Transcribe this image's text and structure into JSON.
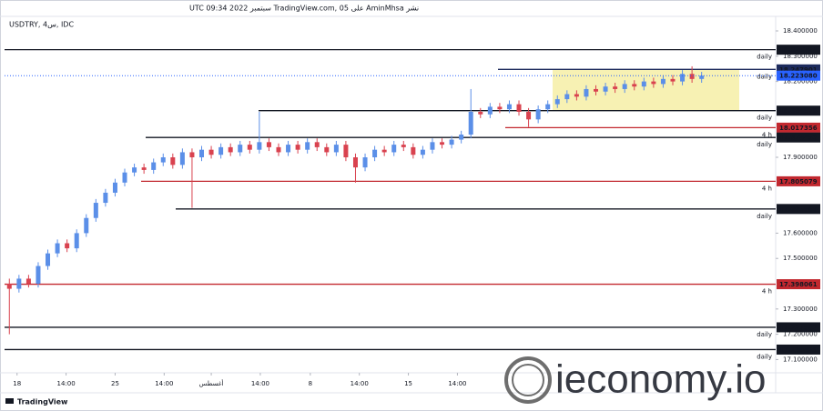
{
  "chart_data": {
    "type": "candlestick",
    "header": "نشر AminMhsa على TradingView.com, 05 سبتمبر 2022 09:34 UTC",
    "symbol": "USDTRY, 4س, IDC",
    "brand": "TradingView",
    "watermark": "ieconomy.io",
    "up_color": "#5b8fe8",
    "down_color": "#d9424f",
    "open": [
      17.4,
      17.38,
      17.42,
      17.4,
      17.47,
      17.52,
      17.56,
      17.54,
      17.6,
      17.66,
      17.72,
      17.76,
      17.8,
      17.84,
      17.86,
      17.85,
      17.88,
      17.9,
      17.87,
      17.92,
      17.9,
      17.93,
      17.91,
      17.94,
      17.92,
      17.95,
      17.93,
      17.96,
      17.94,
      17.92,
      17.95,
      17.93,
      17.96,
      17.94,
      17.92,
      17.95,
      17.9,
      17.86,
      17.9,
      17.93,
      17.92,
      17.95,
      17.94,
      17.91,
      17.93,
      17.96,
      17.95,
      17.97,
      17.99,
      18.08,
      18.07,
      18.1,
      18.09,
      18.11,
      18.08,
      18.05,
      18.09,
      18.11,
      18.13,
      18.15,
      18.14,
      18.17,
      18.16,
      18.18,
      18.17,
      18.19,
      18.18,
      18.2,
      18.19,
      18.21,
      18.2,
      18.23,
      18.21
    ],
    "high": [
      17.42,
      17.435,
      17.435,
      17.485,
      17.535,
      17.575,
      17.575,
      17.615,
      17.675,
      17.735,
      17.775,
      17.815,
      17.855,
      17.875,
      17.875,
      17.895,
      17.915,
      17.915,
      17.935,
      17.935,
      17.945,
      17.945,
      17.955,
      17.955,
      17.965,
      17.965,
      18.08,
      17.975,
      17.955,
      17.965,
      17.965,
      17.975,
      17.975,
      17.955,
      17.965,
      17.965,
      17.915,
      17.915,
      17.945,
      17.945,
      17.965,
      17.965,
      17.955,
      17.945,
      17.975,
      17.975,
      17.985,
      18.005,
      18.17,
      18.095,
      18.115,
      18.115,
      18.125,
      18.125,
      18.095,
      18.105,
      18.125,
      18.145,
      18.165,
      18.165,
      18.185,
      18.185,
      18.195,
      18.195,
      18.205,
      18.205,
      18.215,
      18.215,
      18.225,
      18.225,
      18.245,
      18.26,
      18.238
    ],
    "low": [
      17.2,
      17.365,
      17.385,
      17.385,
      17.455,
      17.505,
      17.525,
      17.525,
      17.585,
      17.645,
      17.705,
      17.745,
      17.785,
      17.825,
      17.835,
      17.835,
      17.865,
      17.855,
      17.855,
      17.7,
      17.885,
      17.895,
      17.895,
      17.905,
      17.905,
      17.915,
      17.915,
      17.925,
      17.905,
      17.905,
      17.915,
      17.915,
      17.925,
      17.905,
      17.905,
      17.885,
      17.8,
      17.845,
      17.885,
      17.905,
      17.905,
      17.925,
      17.895,
      17.895,
      17.915,
      17.935,
      17.935,
      17.955,
      17.975,
      18.055,
      18.055,
      18.075,
      18.075,
      18.065,
      18.02,
      18.035,
      18.075,
      18.095,
      18.115,
      18.125,
      18.125,
      18.145,
      18.145,
      18.155,
      18.155,
      18.165,
      18.165,
      18.175,
      18.175,
      18.185,
      18.185,
      18.195,
      18.195
    ],
    "close": [
      17.38,
      17.42,
      17.4,
      17.47,
      17.52,
      17.56,
      17.54,
      17.6,
      17.66,
      17.72,
      17.76,
      17.8,
      17.84,
      17.86,
      17.85,
      17.88,
      17.9,
      17.87,
      17.92,
      17.9,
      17.93,
      17.91,
      17.94,
      17.92,
      17.95,
      17.93,
      17.96,
      17.94,
      17.92,
      17.95,
      17.93,
      17.96,
      17.94,
      17.92,
      17.95,
      17.9,
      17.86,
      17.9,
      17.93,
      17.92,
      17.95,
      17.94,
      17.91,
      17.93,
      17.96,
      17.95,
      17.97,
      17.99,
      18.08,
      18.07,
      18.1,
      18.09,
      18.11,
      18.08,
      18.05,
      18.09,
      18.11,
      18.13,
      18.15,
      18.14,
      18.17,
      18.16,
      18.18,
      18.17,
      18.19,
      18.18,
      18.2,
      18.19,
      18.21,
      18.2,
      18.23,
      18.21,
      18.22308
    ],
    "last_price": {
      "value": 18.22308,
      "label": "18.223080",
      "color": "#2962ff"
    },
    "levels": [
      {
        "value": 18.325724,
        "color": "#131722",
        "tag": "daily"
      },
      {
        "value": 18.247901,
        "color": "#1c2a5c",
        "tag": "daily"
      },
      {
        "value": 18.084578,
        "color": "#131722",
        "tag": "daily"
      },
      {
        "value": 18.017356,
        "color": "#c2282f",
        "tag": "4 h"
      },
      {
        "value": 17.978453,
        "color": "#131722",
        "tag": "daily"
      },
      {
        "value": 17.805079,
        "color": "#c2282f",
        "tag": "4 h"
      },
      {
        "value": 17.695586,
        "color": "#131722",
        "tag": "daily"
      },
      {
        "value": 17.398061,
        "color": "#c2282f",
        "tag": "4 h"
      },
      {
        "value": 17.227502,
        "color": "#131722",
        "tag": "daily"
      },
      {
        "value": 17.139429,
        "color": "#131722",
        "tag": "daily"
      }
    ],
    "xlim": [
      -0.5,
      79.7
    ],
    "xticks": [
      {
        "value": 0.8,
        "label": "18"
      },
      {
        "value": 5.9,
        "label": "14:00"
      },
      {
        "value": 11,
        "label": "25"
      },
      {
        "value": 16.1,
        "label": "14:00"
      },
      {
        "value": 21,
        "label": "أغسطس"
      },
      {
        "value": 26.1,
        "label": "14:00"
      },
      {
        "value": 31.3,
        "label": "8"
      },
      {
        "value": 36.4,
        "label": "14:00"
      },
      {
        "value": 41.5,
        "label": "15"
      },
      {
        "value": 46.6,
        "label": "14:00"
      }
    ],
    "ylim": [
      17.0475,
      18.4576
    ],
    "yticks": [
      {
        "value": 17.1,
        "label": "17.100000"
      },
      {
        "value": 17.2,
        "label": "17.200000"
      },
      {
        "value": 17.3,
        "label": "17.300000"
      },
      {
        "value": 17.5,
        "label": "17.500000"
      },
      {
        "value": 17.6,
        "label": "17.600000"
      },
      {
        "value": 17.9,
        "label": "17.900000"
      },
      {
        "value": 18.2,
        "label": "18.200000"
      },
      {
        "value": 18.3,
        "label": "18.300000"
      },
      {
        "value": 18.4,
        "label": "18.400000"
      }
    ],
    "grid": false
  }
}
